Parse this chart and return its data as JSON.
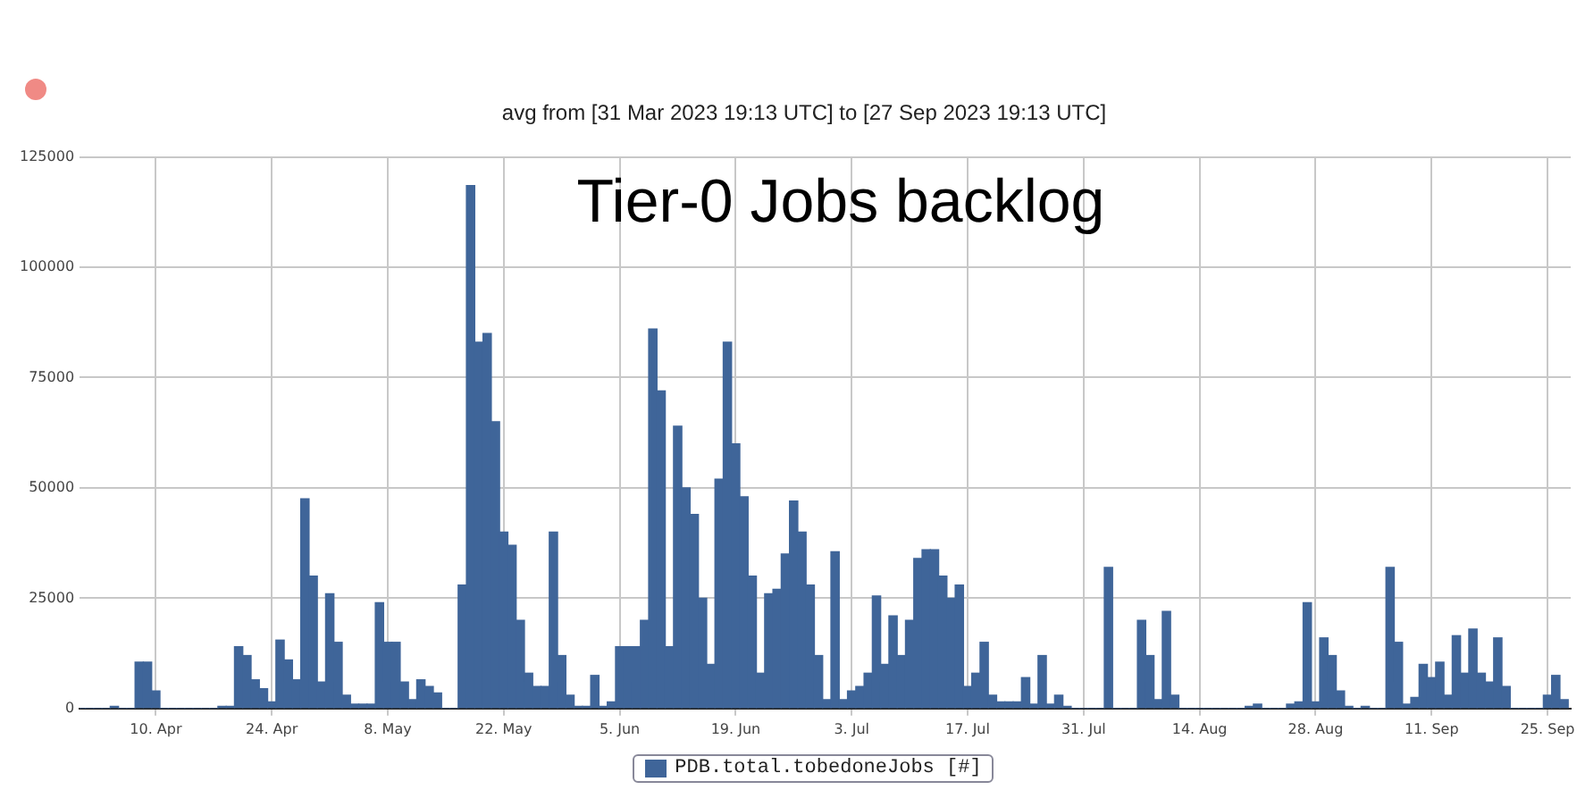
{
  "chart_data": {
    "type": "bar",
    "title": "Tier-0 Jobs backlog",
    "subtitle": "avg from [31 Mar 2023 19:13 UTC] to [27 Sep 2023 19:13 UTC]",
    "x": [
      "2023-04-01",
      "2023-04-02",
      "2023-04-03",
      "2023-04-04",
      "2023-04-05",
      "2023-04-06",
      "2023-04-07",
      "2023-04-08",
      "2023-04-09",
      "2023-04-10",
      "2023-04-11",
      "2023-04-12",
      "2023-04-13",
      "2023-04-14",
      "2023-04-15",
      "2023-04-16",
      "2023-04-17",
      "2023-04-18",
      "2023-04-19",
      "2023-04-20",
      "2023-04-21",
      "2023-04-22",
      "2023-04-23",
      "2023-04-24",
      "2023-04-25",
      "2023-04-26",
      "2023-04-27",
      "2023-04-28",
      "2023-04-29",
      "2023-04-30",
      "2023-05-01",
      "2023-05-02",
      "2023-05-03",
      "2023-05-04",
      "2023-05-05",
      "2023-05-06",
      "2023-05-07",
      "2023-05-08",
      "2023-05-09",
      "2023-05-10",
      "2023-05-11",
      "2023-05-12",
      "2023-05-13",
      "2023-05-14",
      "2023-05-15",
      "2023-05-16",
      "2023-05-17",
      "2023-05-18",
      "2023-05-19",
      "2023-05-20",
      "2023-05-21",
      "2023-05-22",
      "2023-05-23",
      "2023-05-24",
      "2023-05-25",
      "2023-05-26",
      "2023-05-27",
      "2023-05-28",
      "2023-05-29",
      "2023-05-30",
      "2023-05-31",
      "2023-06-01",
      "2023-06-02",
      "2023-06-03",
      "2023-06-04",
      "2023-06-05",
      "2023-06-06",
      "2023-06-07",
      "2023-06-08",
      "2023-06-09",
      "2023-06-10",
      "2023-06-11",
      "2023-06-12",
      "2023-06-13",
      "2023-06-14",
      "2023-06-15",
      "2023-06-16",
      "2023-06-17",
      "2023-06-18",
      "2023-06-19",
      "2023-06-20",
      "2023-06-21",
      "2023-06-22",
      "2023-06-23",
      "2023-06-24",
      "2023-06-25",
      "2023-06-26",
      "2023-06-27",
      "2023-06-28",
      "2023-06-29",
      "2023-06-30",
      "2023-07-01",
      "2023-07-02",
      "2023-07-03",
      "2023-07-04",
      "2023-07-05",
      "2023-07-06",
      "2023-07-07",
      "2023-07-08",
      "2023-07-09",
      "2023-07-10",
      "2023-07-11",
      "2023-07-12",
      "2023-07-13",
      "2023-07-14",
      "2023-07-15",
      "2023-07-16",
      "2023-07-17",
      "2023-07-18",
      "2023-07-19",
      "2023-07-20",
      "2023-07-21",
      "2023-07-22",
      "2023-07-23",
      "2023-07-24",
      "2023-07-25",
      "2023-07-26",
      "2023-07-27",
      "2023-07-28",
      "2023-07-29",
      "2023-07-30",
      "2023-07-31",
      "2023-08-01",
      "2023-08-02",
      "2023-08-03",
      "2023-08-04",
      "2023-08-05",
      "2023-08-06",
      "2023-08-07",
      "2023-08-08",
      "2023-08-09",
      "2023-08-10",
      "2023-08-11",
      "2023-08-12",
      "2023-08-13",
      "2023-08-14",
      "2023-08-15",
      "2023-08-16",
      "2023-08-17",
      "2023-08-18",
      "2023-08-19",
      "2023-08-20",
      "2023-08-21",
      "2023-08-22",
      "2023-08-23",
      "2023-08-24",
      "2023-08-25",
      "2023-08-26",
      "2023-08-27",
      "2023-08-28",
      "2023-08-29",
      "2023-08-30",
      "2023-08-31",
      "2023-09-01",
      "2023-09-02",
      "2023-09-03",
      "2023-09-04",
      "2023-09-05",
      "2023-09-06",
      "2023-09-07",
      "2023-09-08",
      "2023-09-09",
      "2023-09-10",
      "2023-09-11",
      "2023-09-12",
      "2023-09-13",
      "2023-09-14",
      "2023-09-15",
      "2023-09-16",
      "2023-09-17",
      "2023-09-18",
      "2023-09-19",
      "2023-09-20",
      "2023-09-21",
      "2023-09-22",
      "2023-09-23",
      "2023-09-24",
      "2023-09-25",
      "2023-09-26",
      "2023-09-27"
    ],
    "series": [
      {
        "name": "PDB.total.tobedoneJobs [#]",
        "color": "#3f6599",
        "values": [
          0,
          0,
          0,
          0,
          500,
          0,
          0,
          10500,
          10500,
          4000,
          0,
          0,
          0,
          0,
          0,
          0,
          0,
          500,
          500,
          14000,
          12000,
          6500,
          4500,
          1500,
          15500,
          11000,
          6500,
          47500,
          30000,
          6000,
          26000,
          15000,
          3000,
          1000,
          1000,
          1000,
          24000,
          15000,
          15000,
          6000,
          2000,
          6500,
          5000,
          3500,
          0,
          0,
          28000,
          118500,
          83000,
          85000,
          65000,
          40000,
          37000,
          20000,
          8000,
          5000,
          5000,
          40000,
          12000,
          3000,
          500,
          500,
          7500,
          500,
          1500,
          14000,
          14000,
          14000,
          20000,
          86000,
          72000,
          14000,
          64000,
          50000,
          44000,
          25000,
          10000,
          52000,
          83000,
          60000,
          48000,
          30000,
          8000,
          26000,
          27000,
          35000,
          47000,
          40000,
          28000,
          12000,
          2000,
          35500,
          2000,
          4000,
          5000,
          8000,
          25500,
          10000,
          21000,
          12000,
          20000,
          34000,
          36000,
          36000,
          30000,
          25000,
          28000,
          5000,
          8000,
          15000,
          3000,
          1500,
          1500,
          1500,
          7000,
          1000,
          12000,
          1000,
          3000,
          500,
          0,
          0,
          0,
          0,
          32000,
          0,
          0,
          0,
          20000,
          12000,
          2000,
          22000,
          3000,
          0,
          0,
          0,
          0,
          0,
          0,
          0,
          0,
          500,
          1000,
          0,
          0,
          0,
          1000,
          1500,
          24000,
          1500,
          16000,
          12000,
          4000,
          500,
          0,
          500,
          0,
          0,
          32000,
          15000,
          1000,
          2500,
          10000,
          7000,
          10500,
          3000,
          16500,
          8000,
          18000,
          8000,
          6000,
          16000,
          5000,
          0,
          0,
          0,
          0,
          3000,
          7500,
          2000
        ]
      }
    ],
    "xlim": [
      "2023-03-31T19:13",
      "2023-09-27T19:13"
    ],
    "xticks": [
      {
        "value": "2023-04-10",
        "label": "10. Apr"
      },
      {
        "value": "2023-04-24",
        "label": "24. Apr"
      },
      {
        "value": "2023-05-08",
        "label": "8. May"
      },
      {
        "value": "2023-05-22",
        "label": "22. May"
      },
      {
        "value": "2023-06-05",
        "label": "5. Jun"
      },
      {
        "value": "2023-06-19",
        "label": "19. Jun"
      },
      {
        "value": "2023-07-03",
        "label": "3. Jul"
      },
      {
        "value": "2023-07-17",
        "label": "17. Jul"
      },
      {
        "value": "2023-07-31",
        "label": "31. Jul"
      },
      {
        "value": "2023-08-14",
        "label": "14. Aug"
      },
      {
        "value": "2023-08-28",
        "label": "28. Aug"
      },
      {
        "value": "2023-09-11",
        "label": "11. Sep"
      },
      {
        "value": "2023-09-25",
        "label": "25. Sep"
      }
    ],
    "ylim": [
      0,
      125000
    ],
    "yticks": [
      0,
      25000,
      50000,
      75000,
      100000,
      125000
    ],
    "grid": true,
    "legend": "bottom"
  }
}
